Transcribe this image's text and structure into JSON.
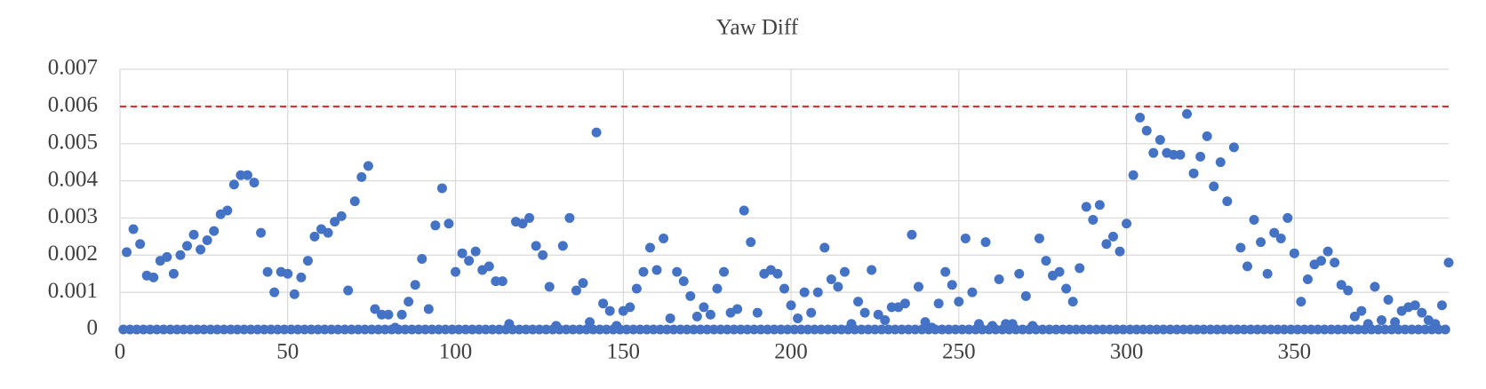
{
  "chart_data": {
    "type": "scatter",
    "title": "Yaw Diff",
    "color": "#4472c4",
    "x": [
      1,
      2,
      3,
      4,
      5,
      6,
      7,
      8,
      9,
      10,
      11,
      12,
      13,
      14,
      15,
      16,
      17,
      18,
      19,
      20,
      21,
      22,
      23,
      24,
      25,
      26,
      27,
      28,
      29,
      30,
      31,
      32,
      33,
      34,
      35,
      36,
      37,
      38,
      39,
      40,
      41,
      42,
      43,
      44,
      45,
      46,
      47,
      48,
      49,
      50,
      51,
      52,
      53,
      54,
      55,
      56,
      57,
      58,
      59,
      60,
      61,
      62,
      63,
      64,
      65,
      66,
      67,
      68,
      69,
      70,
      71,
      72,
      73,
      74,
      75,
      76,
      77,
      78,
      79,
      80,
      81,
      82,
      83,
      84,
      85,
      86,
      87,
      88,
      89,
      90,
      91,
      92,
      93,
      94,
      95,
      96,
      97,
      98,
      99,
      100,
      101,
      102,
      103,
      104,
      105,
      106,
      107,
      108,
      109,
      110,
      111,
      112,
      113,
      114,
      115,
      116,
      117,
      118,
      119,
      120,
      121,
      122,
      123,
      124,
      125,
      126,
      127,
      128,
      129,
      130,
      131,
      132,
      133,
      134,
      135,
      136,
      137,
      138,
      139,
      140,
      141,
      142,
      143,
      144,
      145,
      146,
      147,
      148,
      149,
      150,
      151,
      152,
      153,
      154,
      155,
      156,
      157,
      158,
      159,
      160,
      161,
      162,
      163,
      164,
      165,
      166,
      167,
      168,
      169,
      170,
      171,
      172,
      173,
      174,
      175,
      176,
      177,
      178,
      179,
      180,
      181,
      182,
      183,
      184,
      185,
      186,
      187,
      188,
      189,
      190,
      191,
      192,
      193,
      194,
      195,
      196,
      197,
      198,
      199,
      200,
      201,
      202,
      203,
      204,
      205,
      206,
      207,
      208,
      209,
      210,
      211,
      212,
      213,
      214,
      215,
      216,
      217,
      218,
      219,
      220,
      221,
      222,
      223,
      224,
      225,
      226,
      227,
      228,
      229,
      230,
      231,
      232,
      233,
      234,
      235,
      236,
      237,
      238,
      239,
      240,
      241,
      242,
      243,
      244,
      245,
      246,
      247,
      248,
      249,
      250,
      251,
      252,
      253,
      254,
      255,
      256,
      257,
      258,
      259,
      260,
      261,
      262,
      263,
      264,
      265,
      266,
      267,
      268,
      269,
      270,
      271,
      272,
      273,
      274,
      275,
      276,
      277,
      278,
      279,
      280,
      281,
      282,
      283,
      284,
      285,
      286,
      287,
      288,
      289,
      290,
      291,
      292,
      293,
      294,
      295,
      296,
      297,
      298,
      299,
      300,
      301,
      302,
      303,
      304,
      305,
      306,
      307,
      308,
      309,
      310,
      311,
      312,
      313,
      314,
      315,
      316,
      317,
      318,
      319,
      320,
      321,
      322,
      323,
      324,
      325,
      326,
      327,
      328,
      329,
      330,
      331,
      332,
      333,
      334,
      335,
      336,
      337,
      338,
      339,
      340,
      341,
      342,
      343,
      344,
      345,
      346,
      347,
      348,
      349,
      350,
      351,
      352,
      353,
      354,
      355,
      356,
      357,
      358,
      359,
      360,
      361,
      362,
      363,
      364,
      365,
      366,
      367,
      368,
      369,
      370,
      371,
      372,
      373,
      374,
      375,
      376,
      377,
      378,
      379,
      380,
      381,
      382,
      383,
      384,
      385,
      386,
      387,
      388,
      389,
      390,
      391,
      392,
      393,
      394,
      395,
      396
    ],
    "values": [
      0,
      0.00208,
      0,
      0.0027,
      0,
      0.0023,
      0,
      0.00145,
      0,
      0.0014,
      0,
      0.00185,
      0,
      0.00195,
      0,
      0.0015,
      0,
      0.002,
      0,
      0.00225,
      0,
      0.00255,
      0,
      0.00215,
      0,
      0.0024,
      0,
      0.00265,
      0,
      0.0031,
      0,
      0.0032,
      0,
      0.0039,
      0,
      0.00415,
      0,
      0.00415,
      0,
      0.00395,
      0,
      0.0026,
      0,
      0.00155,
      0,
      0.001,
      0,
      0.00155,
      0,
      0.0015,
      0,
      0.00095,
      0,
      0.0014,
      0,
      0.00185,
      0,
      0.0025,
      0,
      0.0027,
      0,
      0.0026,
      0,
      0.0029,
      0,
      0.00305,
      0,
      0.00105,
      0,
      0.00345,
      0,
      0.0041,
      0,
      0.0044,
      0,
      0.00055,
      0,
      0.0004,
      0,
      0.0004,
      0,
      5e-05,
      0,
      0.0004,
      0,
      0.00075,
      0,
      0.0012,
      0,
      0.0019,
      0,
      0.00055,
      0,
      0.0028,
      0,
      0.0038,
      0,
      0.00285,
      0,
      0.00155,
      0,
      0.00205,
      0,
      0.00185,
      0,
      0.0021,
      0,
      0.0016,
      0,
      0.0017,
      0,
      0.0013,
      0,
      0.0013,
      0,
      0.00015,
      0,
      0.0029,
      0,
      0.00285,
      0,
      0.003,
      0,
      0.00225,
      0,
      0.002,
      0,
      0.00115,
      0,
      0.0001,
      0,
      0.00225,
      0,
      0.003,
      0,
      0.00105,
      0,
      0.00125,
      0,
      0.0002,
      0,
      0.0053,
      0,
      0.0007,
      0,
      0.0005,
      0,
      0.0001,
      0,
      0.0005,
      0,
      0.0006,
      0,
      0.0011,
      0,
      0.00155,
      0,
      0.0022,
      0,
      0.0016,
      0,
      0.00245,
      0,
      0.0003,
      0,
      0.00155,
      0,
      0.0013,
      0,
      0.0009,
      0,
      0.00035,
      0,
      0.0006,
      0,
      0.0004,
      0,
      0.0011,
      0,
      0.00155,
      0,
      0.00045,
      0,
      0.00055,
      0,
      0.0032,
      0,
      0.00235,
      0,
      0.00045,
      0,
      0.0015,
      0,
      0.0016,
      0,
      0.0015,
      0,
      0.0011,
      0,
      0.00065,
      0,
      0.0003,
      0,
      0.001,
      0,
      0.00045,
      0,
      0.001,
      0,
      0.0022,
      0,
      0.00135,
      0,
      0.00115,
      0,
      0.00155,
      0,
      0.00015,
      0,
      0.00075,
      0,
      0.00045,
      0,
      0.0016,
      0,
      0.0004,
      0,
      0.00025,
      0,
      0.0006,
      0,
      0.0006,
      0,
      0.0007,
      0,
      0.00255,
      0,
      0.00115,
      0,
      0.0002,
      0,
      5e-05,
      0,
      0.0007,
      0,
      0.00155,
      0,
      0.0012,
      0,
      0.00075,
      0,
      0.00245,
      0,
      0.001,
      0,
      0.00015,
      0,
      0.00235,
      0,
      0.0001,
      0,
      0.00135,
      0,
      0.00015,
      0,
      0.00015,
      0,
      0.0015,
      0,
      0.0009,
      0,
      0.0001,
      0,
      0.00245,
      0,
      0.00185,
      0,
      0.00145,
      0,
      0.00155,
      0,
      0.0011,
      0,
      0.00075,
      0,
      0.00165,
      0,
      0.0033,
      0,
      0.00295,
      0,
      0.00335,
      0,
      0.0023,
      0,
      0.0025,
      0,
      0.0021,
      0,
      0.00285,
      0,
      0.00415,
      0,
      0.0057,
      0,
      0.00535,
      0,
      0.00475,
      0,
      0.0051,
      0,
      0.00475,
      0,
      0.0047,
      0,
      0.0047,
      0,
      0.0058,
      0,
      0.0042,
      0,
      0.00465,
      0,
      0.0052,
      0,
      0.00385,
      0,
      0.0045,
      0,
      0.00345,
      0,
      0.0049,
      0,
      0.0022,
      0,
      0.0017,
      0,
      0.00295,
      0,
      0.00235,
      0,
      0.0015,
      0,
      0.0026,
      0,
      0.00245,
      0,
      0.003,
      0,
      0.00205,
      0,
      0.00075,
      0,
      0.00135,
      0,
      0.00175,
      0,
      0.00185,
      0,
      0.0021,
      0,
      0.0018,
      0,
      0.0012,
      0,
      0.00105,
      0,
      0.00035,
      0,
      0.0005,
      0,
      0.00015,
      0,
      0.00115,
      0,
      0.00025,
      0,
      0.0008,
      0,
      0.0002,
      0,
      0.0005,
      0,
      0.0006,
      0,
      0.00065,
      0,
      0.00045,
      0,
      0.00025,
      0,
      0.00015,
      0,
      0.00065,
      0,
      0.0018
    ],
    "threshold": 0.006,
    "threshold_color": "#e02020",
    "xlim": [
      0,
      396
    ],
    "xticks": [
      0,
      50,
      100,
      150,
      200,
      250,
      300,
      350
    ],
    "ylim": [
      0,
      0.007
    ],
    "yticks": [
      0,
      0.001,
      0.002,
      0.003,
      0.004,
      0.005,
      0.006,
      0.007
    ],
    "grid": true
  }
}
